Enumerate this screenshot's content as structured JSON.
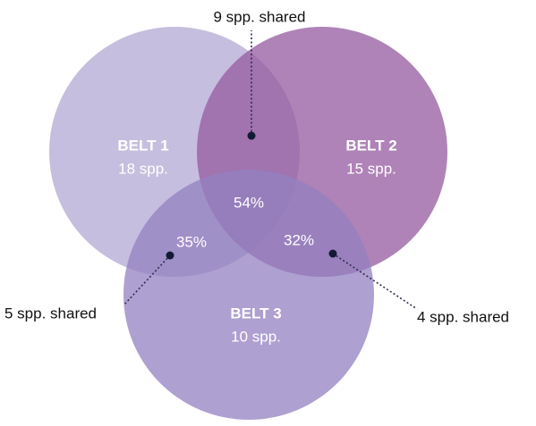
{
  "sets": [
    {
      "label": "BELT 1",
      "count": "18 spp."
    },
    {
      "label": "BELT 2",
      "count": "15 spp."
    },
    {
      "label": "BELT 3",
      "count": "10 spp."
    }
  ],
  "overlaps": [
    {
      "percent": "54%"
    },
    {
      "percent": "35%",
      "callout": "5 spp. shared"
    },
    {
      "percent": "32%",
      "callout": "4 spp. shared"
    }
  ],
  "top_callout": "9 spp. shared"
}
